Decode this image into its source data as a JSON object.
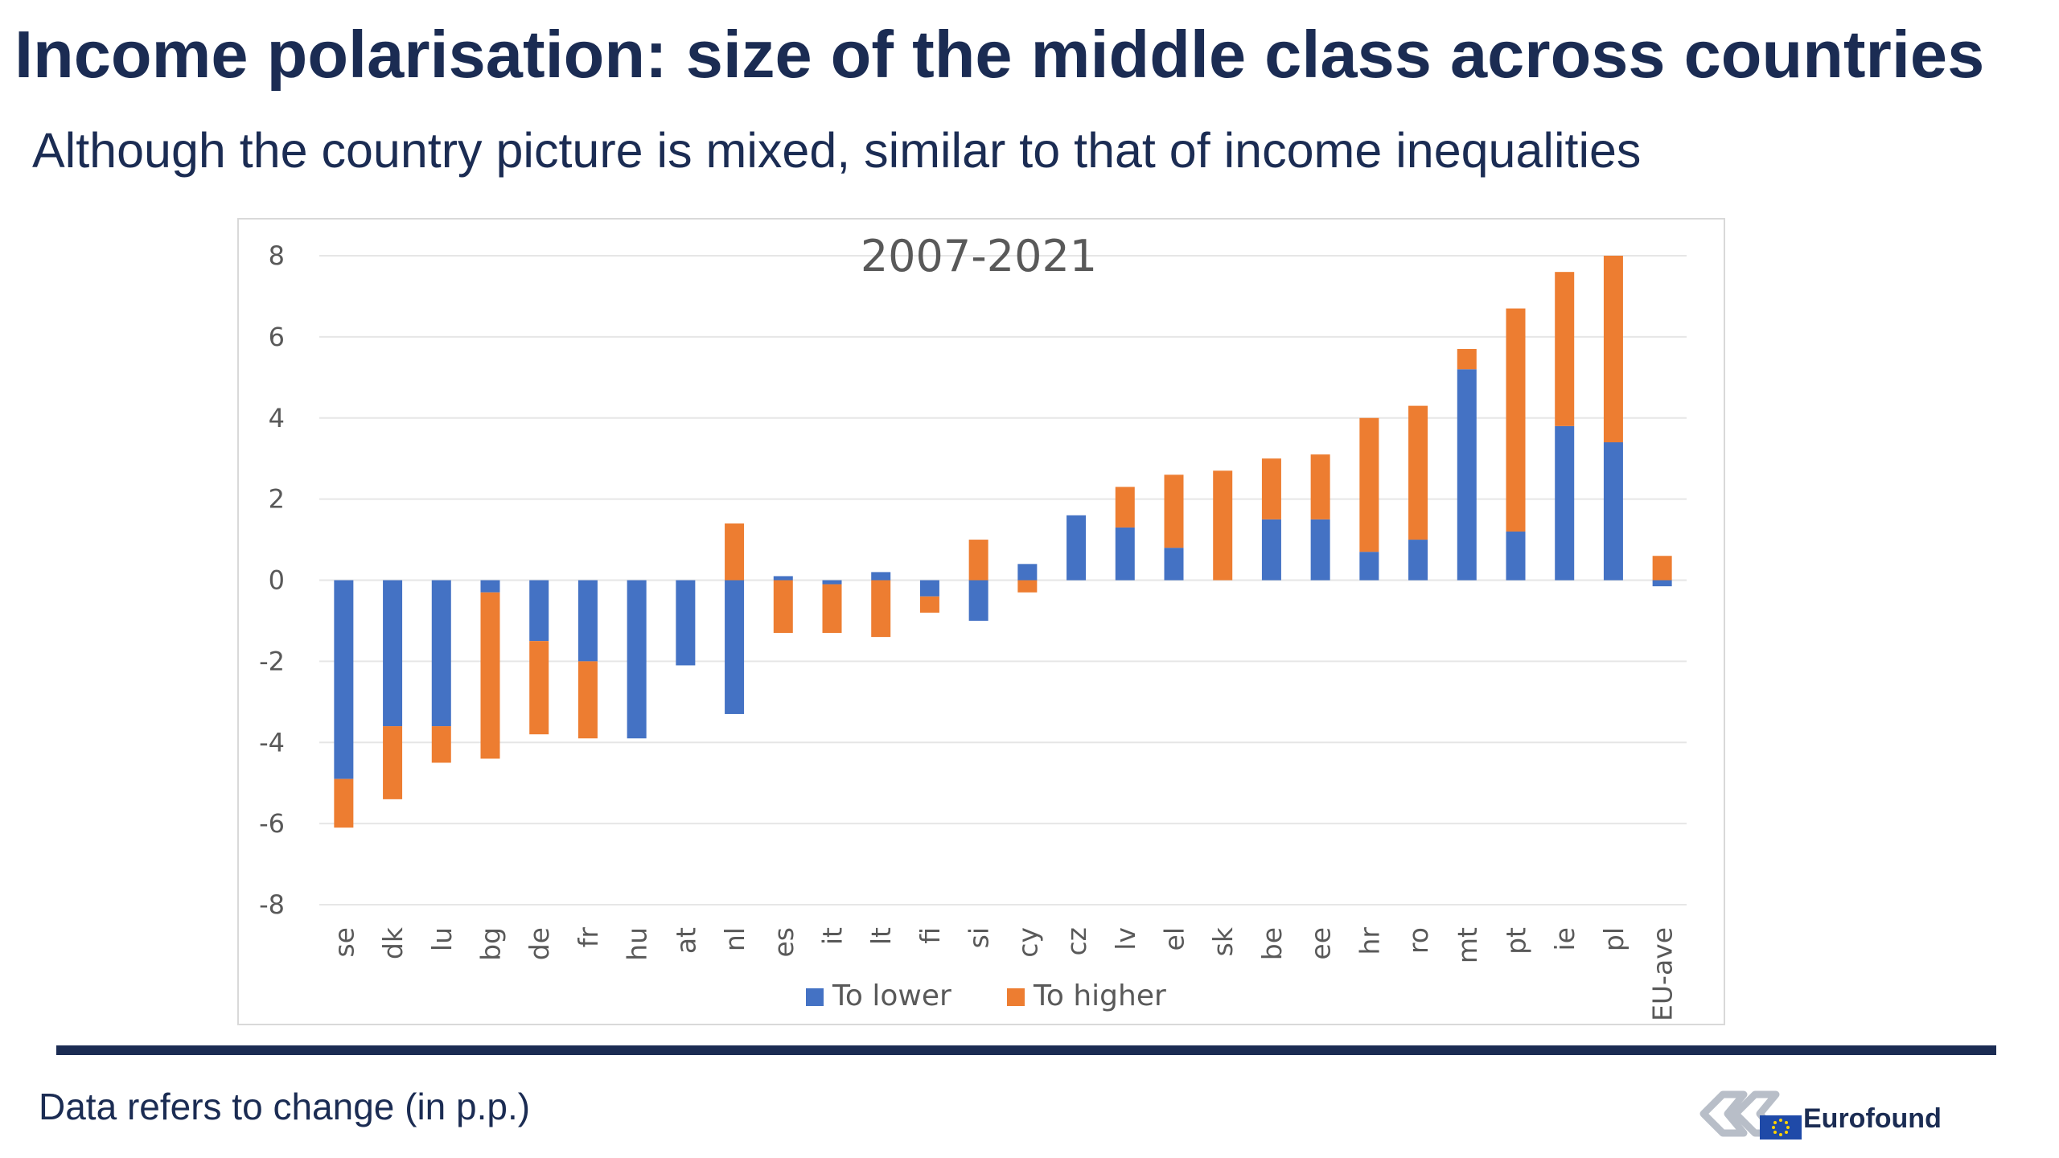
{
  "title": "Income polarisation: size of the middle class across countries",
  "subtitle": "Although the country picture is mixed, similar to that of income inequalities",
  "footnote": "Data refers to change (in p.p.)",
  "logo": {
    "text": "Eurofound"
  },
  "colors": {
    "to_lower": "#4472c4",
    "to_higher": "#ed7d31",
    "gridline": "#e6e6e6",
    "axis_text": "#595959",
    "brand": "#1b2c53"
  },
  "chart_data": {
    "type": "bar",
    "stacked": true,
    "title": "2007-2021",
    "categories": [
      "se",
      "dk",
      "lu",
      "bg",
      "de",
      "fr",
      "hu",
      "at",
      "nl",
      "es",
      "it",
      "lt",
      "fi",
      "si",
      "cy",
      "cz",
      "lv",
      "el",
      "sk",
      "be",
      "ee",
      "hr",
      "ro",
      "mt",
      "pt",
      "ie",
      "pl",
      "EU-ave"
    ],
    "series": [
      {
        "name": "To lower",
        "color": "#4472c4",
        "values": [
          -4.9,
          -3.6,
          -3.6,
          -0.3,
          -1.5,
          -2.0,
          -3.9,
          -2.1,
          -3.3,
          0.1,
          -0.1,
          0.2,
          -0.4,
          -1.0,
          0.4,
          1.6,
          1.3,
          0.8,
          0.0,
          1.5,
          1.5,
          0.7,
          1.0,
          5.2,
          1.2,
          3.8,
          3.4,
          -0.15
        ]
      },
      {
        "name": "To higher",
        "color": "#ed7d31",
        "values": [
          -1.2,
          -1.8,
          -0.9,
          -4.1,
          -2.3,
          -1.9,
          0.0,
          0.0,
          1.4,
          -1.3,
          -1.2,
          -1.4,
          -0.4,
          1.0,
          -0.3,
          0.0,
          1.0,
          1.8,
          2.7,
          1.5,
          1.6,
          3.3,
          3.3,
          0.5,
          5.5,
          3.8,
          4.6,
          0.6
        ]
      }
    ],
    "yticks": [
      "8",
      "6",
      "4",
      "2",
      "0",
      "-2",
      "-4",
      "-6",
      "-8"
    ],
    "ylim": [
      -8,
      8
    ],
    "grid": true,
    "legend_position": "bottom"
  }
}
